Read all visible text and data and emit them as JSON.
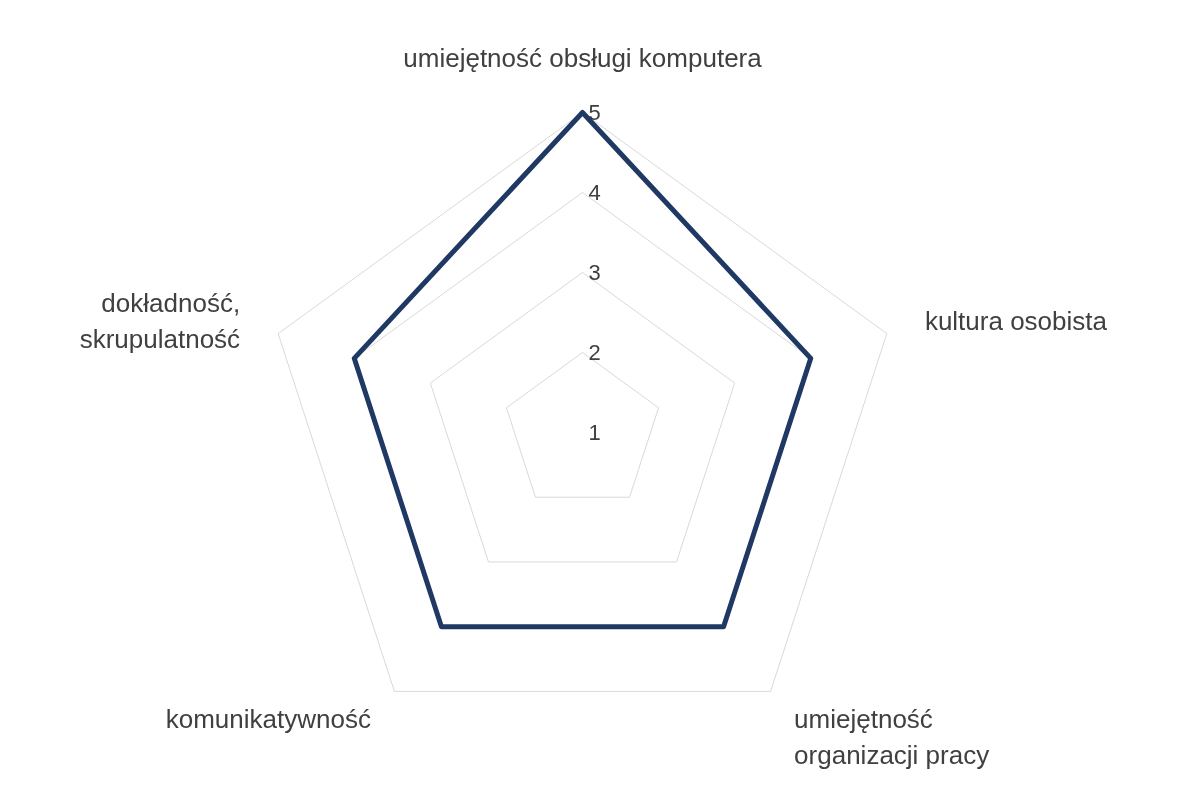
{
  "chart_data": {
    "type": "radar",
    "categories": [
      "umiejętność obsługi komputera",
      "kultura osobista",
      "umiejętność\norganizacji pracy",
      "komunikatywność",
      "dokładność,\nskrupulatność"
    ],
    "series": [
      {
        "color": "#1f3864",
        "values": [
          5,
          4,
          4,
          4,
          4
        ]
      }
    ],
    "ylim": [
      1,
      5
    ],
    "yticks": [
      1,
      2,
      3,
      4,
      5
    ],
    "grid": true
  }
}
